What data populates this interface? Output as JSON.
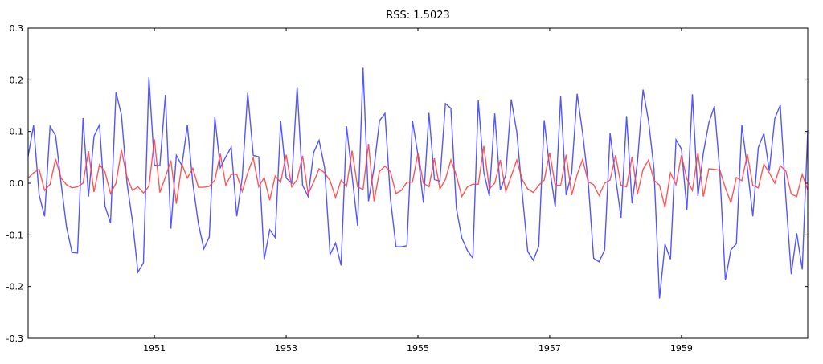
{
  "chart_data": {
    "type": "line",
    "title": "RSS: 1.5023",
    "xlabel": "",
    "ylabel": "",
    "x_range": [
      "1949-02",
      "1960-12"
    ],
    "x_frequency": "monthly",
    "ylim": [
      -0.3,
      0.3
    ],
    "yticks": [
      "-0.3",
      "-0.2",
      "-0.1",
      "0.0",
      "0.1",
      "0.2",
      "0.3"
    ],
    "xticks": [
      "1951",
      "1953",
      "1955",
      "1957",
      "1959"
    ],
    "grid": false,
    "legend": "none",
    "series": [
      {
        "color": "#4444ff",
        "values": [
          0.052,
          0.112,
          -0.023,
          -0.064,
          0.11,
          0.092,
          0.0,
          -0.085,
          -0.134,
          -0.135,
          0.126,
          -0.026,
          0.091,
          0.113,
          -0.044,
          -0.077,
          0.176,
          0.132,
          0.0,
          -0.073,
          -0.172,
          -0.154,
          0.205,
          0.035,
          0.034,
          0.171,
          -0.088,
          0.054,
          0.034,
          0.112,
          0.0,
          -0.078,
          -0.127,
          -0.104,
          0.128,
          0.03,
          0.051,
          0.07,
          -0.064,
          0.011,
          0.175,
          0.054,
          0.051,
          -0.147,
          -0.09,
          -0.105,
          0.12,
          0.01,
          0.0,
          0.186,
          -0.004,
          -0.026,
          0.059,
          0.083,
          0.03,
          -0.138,
          -0.116,
          -0.159,
          0.11,
          0.015,
          -0.082,
          0.223,
          -0.035,
          0.03,
          0.121,
          0.135,
          -0.03,
          -0.123,
          -0.123,
          -0.121,
          0.121,
          0.055,
          -0.038,
          0.136,
          0.007,
          0.004,
          0.154,
          0.145,
          -0.048,
          -0.106,
          -0.13,
          -0.145,
          0.16,
          0.021,
          -0.025,
          0.135,
          -0.013,
          0.016,
          0.162,
          0.099,
          -0.02,
          -0.132,
          -0.149,
          -0.122,
          0.122,
          0.029,
          -0.046,
          0.168,
          -0.023,
          0.02,
          0.173,
          0.097,
          0.004,
          -0.145,
          -0.152,
          -0.129,
          0.097,
          0.012,
          -0.067,
          0.13,
          -0.039,
          0.042,
          0.181,
          0.121,
          0.028,
          -0.223,
          -0.118,
          -0.147,
          0.084,
          0.066,
          -0.051,
          0.172,
          -0.025,
          0.059,
          0.117,
          0.149,
          0.02,
          -0.188,
          -0.129,
          -0.117,
          0.112,
          0.029,
          -0.064,
          0.069,
          0.096,
          0.024,
          0.125,
          0.151,
          -0.026,
          -0.176,
          -0.097,
          -0.167,
          0.102
        ]
      },
      {
        "color": "#ff4444",
        "values": [
          0.01,
          0.02,
          0.027,
          -0.014,
          -0.002,
          0.047,
          0.01,
          -0.003,
          -0.009,
          -0.007,
          0.0,
          0.062,
          -0.017,
          0.036,
          0.022,
          -0.02,
          0.0,
          0.064,
          0.012,
          -0.014,
          -0.007,
          -0.019,
          -0.006,
          0.085,
          -0.018,
          0.012,
          0.044,
          -0.04,
          0.037,
          0.01,
          0.029,
          -0.008,
          -0.008,
          -0.006,
          0.006,
          0.057,
          -0.004,
          0.017,
          0.017,
          -0.016,
          0.02,
          0.049,
          -0.007,
          0.011,
          -0.033,
          0.014,
          0.002,
          0.055,
          -0.007,
          0.007,
          0.053,
          -0.021,
          0.002,
          0.028,
          0.02,
          0.005,
          -0.028,
          0.006,
          -0.006,
          0.063,
          -0.007,
          -0.012,
          0.076,
          -0.035,
          0.023,
          0.033,
          0.022,
          -0.02,
          -0.014,
          0.002,
          0.002,
          0.058,
          0.0,
          -0.007,
          0.048,
          -0.011,
          0.007,
          0.045,
          0.015,
          -0.026,
          -0.007,
          -0.002,
          -0.002,
          0.072,
          -0.011,
          0.0,
          0.045,
          -0.016,
          0.014,
          0.045,
          0.007,
          -0.011,
          -0.018,
          -0.004,
          0.006,
          0.059,
          -0.004,
          -0.004,
          0.055,
          -0.023,
          0.017,
          0.046,
          0.003,
          -0.003,
          -0.024,
          0.0,
          0.006,
          0.054,
          -0.004,
          -0.007,
          0.051,
          -0.021,
          0.027,
          0.045,
          0.006,
          -0.004,
          -0.047,
          0.02,
          -0.003,
          0.054,
          0.008,
          -0.014,
          0.059,
          -0.026,
          0.028,
          0.027,
          0.025,
          -0.009,
          -0.038,
          0.011,
          0.005,
          0.056,
          -0.004,
          -0.009,
          0.037,
          0.02,
          0.0,
          0.034,
          0.024,
          -0.021,
          -0.026,
          0.017,
          -0.013
        ]
      }
    ]
  }
}
